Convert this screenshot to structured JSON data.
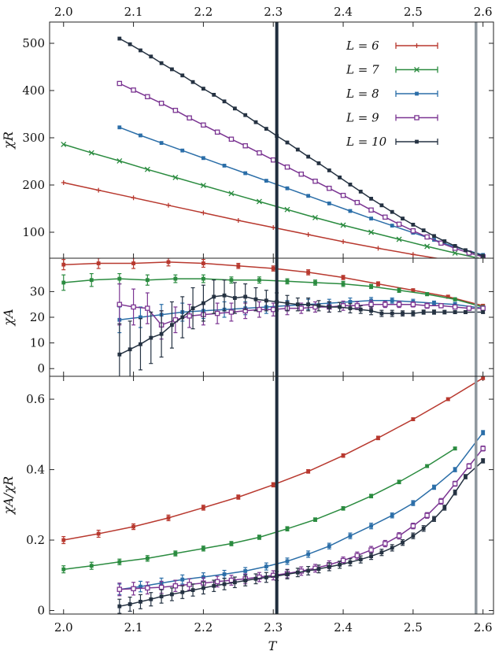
{
  "figure": {
    "xlabel": "T",
    "x_ticks": [
      2.0,
      2.1,
      2.2,
      2.3,
      2.4,
      2.5,
      2.6
    ],
    "x_tick_labels": [
      "2.0",
      "2.1",
      "2.2",
      "2.3",
      "2.4",
      "2.5",
      "2.6"
    ],
    "vertical_lines": [
      {
        "x": 2.305,
        "color": "#1f2d3d"
      },
      {
        "x": 2.59,
        "color": "#8e979e"
      }
    ],
    "colors": {
      "L6": "#b8392f",
      "L7": "#2a8b3f",
      "L8": "#2b6ea8",
      "L9": "#7b3592",
      "L10": "#253242"
    }
  },
  "chart_data": [
    {
      "type": "line",
      "panel": "top",
      "ylabel": "χR",
      "xlim": [
        1.98,
        2.615
      ],
      "ylim": [
        45,
        545
      ],
      "y_ticks": [
        100,
        200,
        300,
        400,
        500
      ],
      "y_tick_labels": [
        "100",
        "200",
        "300",
        "400",
        "500"
      ],
      "legend": {
        "placement": "top-right",
        "entries": [
          "L = 6",
          "L = 7",
          "L = 8",
          "L = 9",
          "L = 10"
        ]
      },
      "series": [
        {
          "name": "L = 6",
          "marker": "plus",
          "x": [
            2.0,
            2.05,
            2.1,
            2.15,
            2.2,
            2.25,
            2.3,
            2.35,
            2.4,
            2.45,
            2.5,
            2.55,
            2.6
          ],
          "y": [
            205,
            189,
            173,
            157,
            141,
            125,
            110,
            95,
            80,
            66,
            53,
            41,
            30
          ]
        },
        {
          "name": "L = 7",
          "marker": "cross",
          "x": [
            2.0,
            2.04,
            2.08,
            2.12,
            2.16,
            2.2,
            2.24,
            2.28,
            2.32,
            2.36,
            2.4,
            2.44,
            2.48,
            2.52,
            2.56,
            2.6
          ],
          "y": [
            286,
            268,
            251,
            233,
            216,
            199,
            182,
            165,
            148,
            131,
            115,
            100,
            85,
            70,
            56,
            43
          ]
        },
        {
          "name": "L = 8",
          "marker": "filled-square",
          "x": [
            2.08,
            2.11,
            2.14,
            2.17,
            2.2,
            2.23,
            2.26,
            2.29,
            2.32,
            2.35,
            2.38,
            2.41,
            2.44,
            2.47,
            2.5,
            2.53,
            2.56,
            2.6
          ],
          "y": [
            322,
            305,
            289,
            273,
            257,
            241,
            225,
            209,
            193,
            177,
            161,
            145,
            129,
            114,
            99,
            84,
            69,
            52
          ]
        },
        {
          "name": "L = 9",
          "marker": "open-square",
          "x": [
            2.08,
            2.1,
            2.12,
            2.14,
            2.16,
            2.18,
            2.2,
            2.22,
            2.24,
            2.26,
            2.28,
            2.3,
            2.32,
            2.34,
            2.36,
            2.38,
            2.4,
            2.42,
            2.44,
            2.46,
            2.48,
            2.5,
            2.52,
            2.54,
            2.56,
            2.58,
            2.6
          ],
          "y": [
            415,
            401,
            387,
            373,
            358,
            342,
            327,
            312,
            297,
            283,
            268,
            253,
            238,
            223,
            208,
            193,
            178,
            163,
            147,
            132,
            117,
            103,
            90,
            77,
            66,
            56,
            48
          ]
        },
        {
          "name": "L = 10",
          "marker": "filled-square",
          "x": [
            2.08,
            2.095,
            2.11,
            2.125,
            2.14,
            2.155,
            2.17,
            2.185,
            2.2,
            2.215,
            2.23,
            2.245,
            2.26,
            2.275,
            2.29,
            2.305,
            2.32,
            2.335,
            2.35,
            2.365,
            2.38,
            2.395,
            2.41,
            2.425,
            2.44,
            2.455,
            2.47,
            2.485,
            2.5,
            2.515,
            2.53,
            2.545,
            2.56,
            2.575,
            2.6
          ],
          "y": [
            510,
            498,
            485,
            472,
            458,
            445,
            432,
            418,
            404,
            391,
            377,
            362,
            348,
            333,
            319,
            304,
            290,
            275,
            260,
            246,
            231,
            216,
            201,
            186,
            171,
            157,
            143,
            129,
            116,
            104,
            92,
            81,
            71,
            62,
            50
          ]
        }
      ]
    },
    {
      "type": "line",
      "panel": "middle",
      "ylabel": "χA",
      "xlim": [
        1.98,
        2.615
      ],
      "ylim": [
        -3,
        43
      ],
      "y_ticks": [
        0,
        10,
        20,
        30
      ],
      "y_tick_labels": [
        "0",
        "10",
        "20",
        "30"
      ],
      "series": [
        {
          "name": "L = 6",
          "x": [
            2.0,
            2.05,
            2.1,
            2.15,
            2.2,
            2.25,
            2.3,
            2.35,
            2.4,
            2.45,
            2.5,
            2.55,
            2.6
          ],
          "y": [
            40.5,
            41,
            41,
            41.5,
            41,
            40,
            39,
            37.5,
            35.5,
            33,
            30.5,
            28,
            24.5
          ],
          "err": [
            2,
            2,
            2,
            1.5,
            1.5,
            1,
            1,
            1,
            0.8,
            0.8,
            0.6,
            0.6,
            0.5
          ]
        },
        {
          "name": "L = 7",
          "x": [
            2.0,
            2.04,
            2.08,
            2.12,
            2.16,
            2.2,
            2.24,
            2.28,
            2.32,
            2.36,
            2.4,
            2.44,
            2.48,
            2.52,
            2.56,
            2.6
          ],
          "y": [
            33.5,
            34.5,
            35,
            34.5,
            35,
            35,
            34.5,
            34.5,
            34,
            33.5,
            33,
            32,
            30.5,
            29,
            27,
            24
          ],
          "err": [
            3,
            2.5,
            2,
            2,
            1.5,
            1.5,
            1.2,
            1.2,
            1,
            1,
            1,
            0.8,
            0.8,
            0.6,
            0.6,
            0.5
          ]
        },
        {
          "name": "L = 8",
          "x": [
            2.08,
            2.11,
            2.14,
            2.17,
            2.2,
            2.23,
            2.26,
            2.29,
            2.32,
            2.35,
            2.38,
            2.41,
            2.44,
            2.47,
            2.5,
            2.53,
            2.56,
            2.6
          ],
          "y": [
            19,
            20,
            21,
            22,
            22.5,
            23,
            23.5,
            24,
            24.5,
            25,
            25.5,
            26,
            26.5,
            26.5,
            26,
            25.5,
            25,
            23.5
          ],
          "err": [
            5,
            4,
            4,
            3.5,
            3,
            3,
            2.5,
            2.5,
            2,
            2,
            1.5,
            1.5,
            1.2,
            1,
            1,
            0.8,
            0.8,
            0.6
          ]
        },
        {
          "name": "L = 9",
          "x": [
            2.08,
            2.1,
            2.12,
            2.14,
            2.16,
            2.18,
            2.2,
            2.22,
            2.24,
            2.26,
            2.28,
            2.3,
            2.32,
            2.34,
            2.36,
            2.38,
            2.4,
            2.42,
            2.44,
            2.46,
            2.48,
            2.5,
            2.52,
            2.54,
            2.56,
            2.58,
            2.6
          ],
          "y": [
            25,
            24,
            23.5,
            17,
            19,
            20.5,
            21,
            21.5,
            22,
            22.5,
            23,
            23,
            23.5,
            23.5,
            24,
            24,
            24.5,
            24.5,
            25,
            25,
            25,
            25,
            24.5,
            24.5,
            24,
            23.5,
            23.5
          ],
          "err": [
            8,
            7,
            6,
            5.5,
            5,
            4.5,
            4,
            4,
            3.5,
            3,
            3,
            2.5,
            2.5,
            2,
            2,
            2,
            1.8,
            1.5,
            1.5,
            1.2,
            1.2,
            1,
            1,
            0.8,
            0.8,
            0.6,
            0.6
          ]
        },
        {
          "name": "L = 10",
          "x": [
            2.08,
            2.095,
            2.11,
            2.125,
            2.14,
            2.155,
            2.17,
            2.185,
            2.2,
            2.215,
            2.23,
            2.245,
            2.26,
            2.275,
            2.29,
            2.305,
            2.32,
            2.335,
            2.35,
            2.365,
            2.38,
            2.395,
            2.41,
            2.425,
            2.44,
            2.455,
            2.47,
            2.485,
            2.5,
            2.515,
            2.53,
            2.545,
            2.56,
            2.575,
            2.6
          ],
          "y": [
            5.5,
            7.5,
            9.5,
            12,
            13.5,
            17,
            20,
            23.5,
            25.5,
            28,
            28.5,
            27.5,
            28,
            27,
            26.5,
            26,
            25.5,
            25,
            25,
            24.5,
            24,
            24,
            23.5,
            23,
            22.5,
            21.5,
            21.5,
            21.5,
            21.5,
            22,
            22,
            22,
            22,
            22,
            22
          ],
          "err": [
            12,
            11,
            10,
            10,
            9,
            9,
            8,
            8,
            7,
            6.5,
            6,
            6,
            5,
            4.5,
            4,
            3.5,
            3,
            2.5,
            2.5,
            2,
            2,
            1.8,
            1.8,
            1.5,
            1.5,
            1.2,
            1.2,
            1,
            1,
            0.8,
            0.8,
            0.7,
            0.6,
            0.6,
            0.5
          ]
        }
      ]
    },
    {
      "type": "line",
      "panel": "bottom",
      "ylabel": "χA/χR",
      "xlim": [
        1.98,
        2.615
      ],
      "ylim": [
        -0.01,
        0.665
      ],
      "y_ticks": [
        0,
        0.2,
        0.4,
        0.6
      ],
      "y_tick_labels": [
        "0",
        "0.2",
        "0.4",
        "0.6"
      ],
      "series": [
        {
          "name": "L = 6",
          "x": [
            2.0,
            2.05,
            2.1,
            2.15,
            2.2,
            2.25,
            2.3,
            2.35,
            2.4,
            2.45,
            2.5,
            2.55,
            2.6
          ],
          "y": [
            0.2,
            0.218,
            0.238,
            0.263,
            0.292,
            0.322,
            0.357,
            0.395,
            0.44,
            0.49,
            0.543,
            0.6,
            0.66
          ],
          "err": [
            0.01,
            0.01,
            0.008,
            0.008,
            0.007,
            0.006,
            0.006,
            0.005,
            0.005,
            0.005,
            0.004,
            0.004,
            0.004
          ]
        },
        {
          "name": "L = 7",
          "x": [
            2.0,
            2.04,
            2.08,
            2.12,
            2.16,
            2.2,
            2.24,
            2.28,
            2.32,
            2.36,
            2.4,
            2.44,
            2.48,
            2.52,
            2.56
          ],
          "y": [
            0.117,
            0.127,
            0.138,
            0.148,
            0.162,
            0.176,
            0.19,
            0.208,
            0.232,
            0.258,
            0.29,
            0.325,
            0.365,
            0.41,
            0.46
          ],
          "err": [
            0.01,
            0.01,
            0.008,
            0.008,
            0.007,
            0.007,
            0.006,
            0.006,
            0.006,
            0.005,
            0.005,
            0.005,
            0.005,
            0.004,
            0.004
          ]
        },
        {
          "name": "L = 8",
          "x": [
            2.08,
            2.11,
            2.14,
            2.17,
            2.2,
            2.23,
            2.26,
            2.29,
            2.32,
            2.35,
            2.38,
            2.41,
            2.44,
            2.47,
            2.5,
            2.53,
            2.56,
            2.6
          ],
          "y": [
            0.06,
            0.068,
            0.078,
            0.088,
            0.095,
            0.103,
            0.112,
            0.125,
            0.14,
            0.16,
            0.183,
            0.212,
            0.24,
            0.27,
            0.305,
            0.35,
            0.4,
            0.505
          ],
          "err": [
            0.015,
            0.015,
            0.014,
            0.013,
            0.012,
            0.011,
            0.01,
            0.01,
            0.009,
            0.009,
            0.008,
            0.008,
            0.008,
            0.007,
            0.007,
            0.006,
            0.006,
            0.006
          ]
        },
        {
          "name": "L = 9",
          "x": [
            2.08,
            2.1,
            2.12,
            2.14,
            2.16,
            2.18,
            2.2,
            2.22,
            2.24,
            2.26,
            2.28,
            2.3,
            2.32,
            2.34,
            2.36,
            2.38,
            2.4,
            2.42,
            2.44,
            2.46,
            2.48,
            2.5,
            2.52,
            2.54,
            2.56,
            2.58,
            2.6
          ],
          "y": [
            0.06,
            0.062,
            0.064,
            0.066,
            0.07,
            0.074,
            0.078,
            0.082,
            0.086,
            0.09,
            0.095,
            0.1,
            0.105,
            0.112,
            0.12,
            0.13,
            0.142,
            0.156,
            0.172,
            0.19,
            0.212,
            0.24,
            0.27,
            0.31,
            0.36,
            0.41,
            0.46
          ],
          "err": [
            0.018,
            0.018,
            0.017,
            0.017,
            0.016,
            0.016,
            0.015,
            0.015,
            0.014,
            0.014,
            0.013,
            0.013,
            0.012,
            0.012,
            0.011,
            0.011,
            0.01,
            0.01,
            0.01,
            0.009,
            0.009,
            0.008,
            0.008,
            0.008,
            0.007,
            0.007,
            0.007
          ]
        },
        {
          "name": "L = 10",
          "x": [
            2.08,
            2.095,
            2.11,
            2.125,
            2.14,
            2.155,
            2.17,
            2.185,
            2.2,
            2.215,
            2.23,
            2.245,
            2.26,
            2.275,
            2.29,
            2.305,
            2.32,
            2.335,
            2.35,
            2.365,
            2.38,
            2.395,
            2.41,
            2.425,
            2.44,
            2.455,
            2.47,
            2.485,
            2.5,
            2.515,
            2.53,
            2.545,
            2.56,
            2.575,
            2.6
          ],
          "y": [
            0.012,
            0.018,
            0.025,
            0.032,
            0.04,
            0.046,
            0.052,
            0.058,
            0.064,
            0.07,
            0.075,
            0.08,
            0.085,
            0.09,
            0.094,
            0.098,
            0.103,
            0.108,
            0.113,
            0.118,
            0.124,
            0.13,
            0.137,
            0.145,
            0.154,
            0.165,
            0.178,
            0.193,
            0.212,
            0.233,
            0.26,
            0.292,
            0.335,
            0.38,
            0.425
          ],
          "err": [
            0.02,
            0.02,
            0.02,
            0.019,
            0.019,
            0.018,
            0.018,
            0.017,
            0.017,
            0.016,
            0.016,
            0.015,
            0.015,
            0.014,
            0.014,
            0.013,
            0.013,
            0.012,
            0.012,
            0.011,
            0.011,
            0.01,
            0.01,
            0.01,
            0.009,
            0.009,
            0.009,
            0.008,
            0.008,
            0.008,
            0.007,
            0.007,
            0.007,
            0.006,
            0.006
          ]
        }
      ]
    }
  ]
}
